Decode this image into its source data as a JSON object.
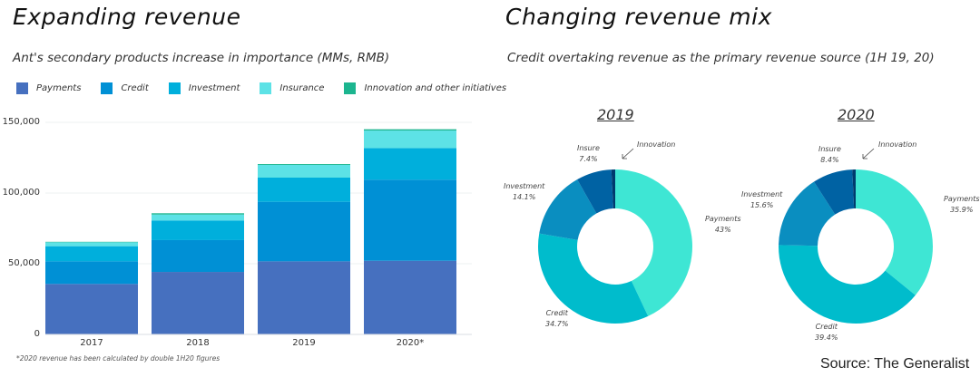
{
  "chart_data": [
    {
      "type": "bar",
      "stacked": true,
      "title": "Expanding revenue",
      "subtitle": "Ant's secondary products increase in importance (MMs, RMB)",
      "categories": [
        "2017",
        "2018",
        "2019",
        "2020*"
      ],
      "series": [
        {
          "name": "Payments",
          "color": "#4670bf",
          "values": [
            35700,
            44200,
            51700,
            52100
          ]
        },
        {
          "name": "Credit",
          "color": "#0090d5",
          "values": [
            16000,
            22500,
            42100,
            57300
          ]
        },
        {
          "name": "Investment",
          "color": "#00afdc",
          "values": [
            10700,
            13900,
            17100,
            22400
          ]
        },
        {
          "name": "Insurance",
          "color": "#5de2e6",
          "values": [
            2800,
            4200,
            9000,
            12400
          ]
        },
        {
          "name": "Innovation and other initiatives",
          "color": "#1cb58f",
          "values": [
            300,
            900,
            600,
            900
          ]
        }
      ],
      "ylim": [
        0,
        150000
      ],
      "yticks": [
        "0",
        "50,000",
        "100,000",
        "150,000"
      ],
      "ytick_values": [
        0,
        50000,
        100000,
        150000
      ],
      "grid": true,
      "legend": "top",
      "footnote": "*2020 revenue has been calculated by double 1H20 figures"
    },
    {
      "type": "pie",
      "title": "Changing revenue mix",
      "subtitle": "Credit overtaking revenue as the primary revenue source (1H 19, 20)",
      "charts": [
        {
          "label": "2019",
          "slices": [
            {
              "name": "Payments",
              "value": 43,
              "label": "43%",
              "color": "#3ee6d4"
            },
            {
              "name": "Credit",
              "value": 34.7,
              "label": "34.7%",
              "color": "#00bccc"
            },
            {
              "name": "Investment",
              "value": 14.1,
              "label": "14.1%",
              "color": "#0a8ec0"
            },
            {
              "name": "Insure",
              "value": 7.4,
              "label": "7.4%",
              "color": "#0062a3"
            },
            {
              "name": "Innovation",
              "value": 0.8,
              "label": "",
              "color": "#003a6e"
            }
          ]
        },
        {
          "label": "2020",
          "slices": [
            {
              "name": "Payments",
              "value": 35.9,
              "label": "35.9%",
              "color": "#3ee6d4"
            },
            {
              "name": "Credit",
              "value": 39.4,
              "label": "39.4%",
              "color": "#00bccc"
            },
            {
              "name": "Investment",
              "value": 15.6,
              "label": "15.6%",
              "color": "#0a8ec0"
            },
            {
              "name": "Insure",
              "value": 8.4,
              "label": "8.4%",
              "color": "#0062a3"
            },
            {
              "name": "Innovation",
              "value": 0.7,
              "label": "",
              "color": "#003a6e"
            }
          ]
        }
      ],
      "donut": true
    }
  ],
  "source": "Source: The Generalist"
}
